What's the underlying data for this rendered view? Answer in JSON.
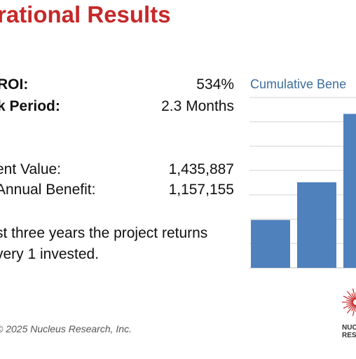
{
  "title": "rational Results",
  "metrics": [
    {
      "label": "ROI:",
      "value": "534%"
    },
    {
      "label": "k Period:",
      "value": "2.3 Months"
    },
    {
      "label": "ent Value:",
      "value": "1,435,887"
    },
    {
      "label": "Annual Benefit:",
      "value": "1,157,155"
    }
  ],
  "summary": {
    "line1": "st three years the project returns",
    "line2": "very 1 invested."
  },
  "footer": "© 2025 Nucleus Research, Inc.",
  "logo": {
    "line1": "NUC",
    "line2": "RESE"
  },
  "colors": {
    "title": "#c62828",
    "bar": "#4f81bd",
    "chart_title": "#3d6e9e",
    "grid": "#d4d4d4"
  },
  "chart_data": {
    "type": "bar",
    "title": "Cumulative Bene",
    "values": [
      0.28,
      0.5,
      0.9
    ],
    "ylim": [
      0,
      1
    ],
    "grid": true
  }
}
